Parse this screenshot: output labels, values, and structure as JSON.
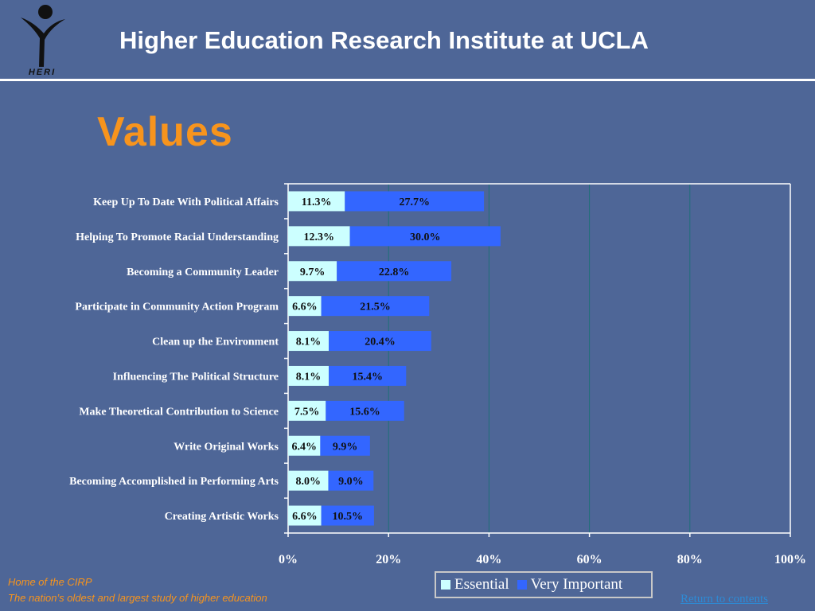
{
  "header": {
    "title": "Higher Education Research Institute at UCLA",
    "logo_text": "HERI"
  },
  "slide": {
    "title": "Values"
  },
  "colors": {
    "background": "#4e6697",
    "title_orange": "#f7941d",
    "essential": "#ccffff",
    "very_important": "#3366ff",
    "gridline": "#1f6f78"
  },
  "chart_data": {
    "type": "bar",
    "orientation": "horizontal",
    "stacked": true,
    "categories": [
      "Keep Up To Date With Political Affairs",
      "Helping To Promote Racial Understanding",
      "Becoming a Community Leader",
      "Participate in Community Action Program",
      "Clean up the Environment",
      "Influencing The Political Structure",
      "Make Theoretical Contribution to Science",
      "Write Original Works",
      "Becoming Accomplished in Performing Arts",
      "Creating Artistic Works"
    ],
    "series": [
      {
        "name": "Essential",
        "values": [
          11.3,
          12.3,
          9.7,
          6.6,
          8.1,
          8.1,
          7.5,
          6.4,
          8.0,
          6.6
        ],
        "labels": [
          "11.3%",
          "12.3%",
          "9.7%",
          "6.6%",
          "8.1%",
          "8.1%",
          "7.5%",
          "6.4%",
          "8.0%",
          "6.6%"
        ]
      },
      {
        "name": "Very Important",
        "values": [
          27.7,
          30.0,
          22.8,
          21.5,
          20.4,
          15.4,
          15.6,
          9.9,
          9.0,
          10.5
        ],
        "labels": [
          "27.7%",
          "30.0%",
          "22.8%",
          "21.5%",
          "20.4%",
          "15.4%",
          "15.6%",
          "9.9%",
          "9.0%",
          "10.5%"
        ]
      }
    ],
    "xlim": [
      0,
      100
    ],
    "xticks": [
      "0%",
      "20%",
      "40%",
      "60%",
      "80%",
      "100%"
    ],
    "grid": true,
    "legend_position": "bottom-right"
  },
  "footer": {
    "home": "Home of the CIRP",
    "tagline": "The nation’s oldest and largest study of higher education",
    "return_link": "Return to contents"
  }
}
